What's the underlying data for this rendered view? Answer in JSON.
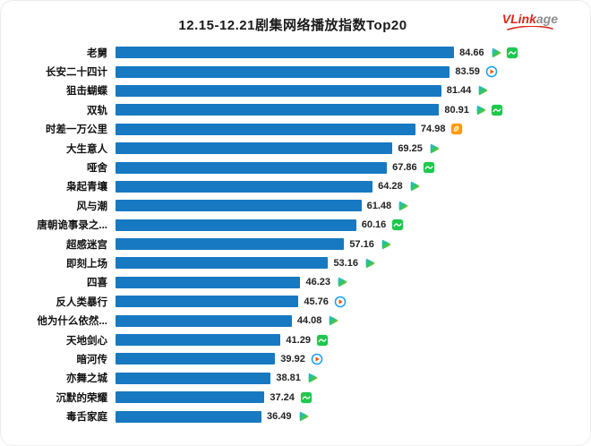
{
  "header": {
    "title": "12.15-12.21剧集网络播放指数Top20",
    "logo": {
      "part1": "VLink",
      "part2": "age"
    }
  },
  "chart_data": {
    "type": "bar",
    "orientation": "horizontal",
    "title": "12.15-12.21剧集网络播放指数Top20",
    "xlabel": "",
    "ylabel": "",
    "xlim": [
      0,
      90
    ],
    "grid": false,
    "bar_color": "#1779c2",
    "categories": [
      "老舅",
      "长安二十四计",
      "狙击蝴蝶",
      "双轨",
      "时差一万公里",
      "大生意人",
      "哑舍",
      "枭起青壤",
      "风与潮",
      "唐朝诡事录之...",
      "超感迷宫",
      "即刻上场",
      "四喜",
      "反人类暴行",
      "他为什么依然...",
      "天地剑心",
      "暗河传",
      "亦舞之城",
      "沉默的荣耀",
      "毒舌家庭"
    ],
    "values": [
      84.66,
      83.59,
      81.44,
      80.91,
      74.98,
      69.25,
      67.86,
      64.28,
      61.48,
      60.16,
      57.16,
      53.16,
      46.23,
      45.76,
      44.08,
      41.29,
      39.92,
      38.81,
      37.24,
      36.49
    ],
    "platforms": [
      [
        "tencent",
        "iqiyi"
      ],
      [
        "youku"
      ],
      [
        "tencent"
      ],
      [
        "tencent",
        "iqiyi"
      ],
      [
        "mango"
      ],
      [
        "tencent"
      ],
      [
        "iqiyi"
      ],
      [
        "tencent"
      ],
      [
        "tencent"
      ],
      [
        "iqiyi"
      ],
      [
        "tencent"
      ],
      [
        "tencent"
      ],
      [
        "tencent"
      ],
      [
        "youku"
      ],
      [
        "tencent"
      ],
      [
        "iqiyi"
      ],
      [
        "youku"
      ],
      [
        "tencent"
      ],
      [
        "iqiyi"
      ],
      [
        "tencent"
      ]
    ],
    "platform_icon_names": {
      "tencent": "tencent-video-icon",
      "iqiyi": "iqiyi-icon",
      "youku": "youku-icon",
      "mango": "mango-tv-icon"
    },
    "platform_colors": {
      "tencent": "#2bb3f0",
      "iqiyi": "#1dc94c",
      "youku": "#19a0f0",
      "mango": "#ff9a00"
    }
  }
}
